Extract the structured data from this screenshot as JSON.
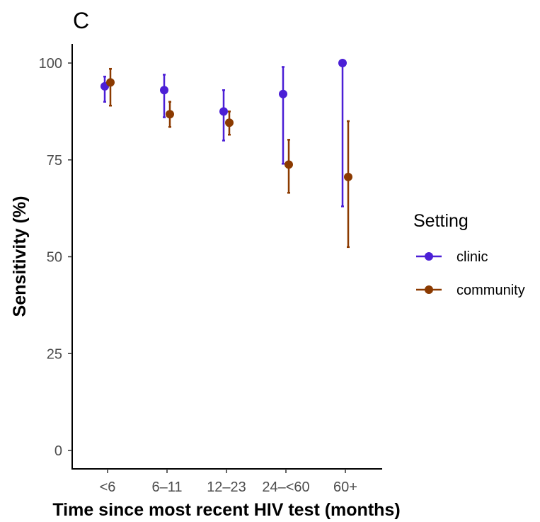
{
  "chart_data": {
    "type": "scatter",
    "panel_tag": "C",
    "xlabel": "Time since most recent HIV test (months)",
    "ylabel": "Sensitivity (%)",
    "ylim": [
      0,
      100
    ],
    "yticks": [
      "0",
      "25",
      "50",
      "75",
      "100"
    ],
    "categories": [
      "<6",
      "6–11",
      "12–23",
      "24–<60",
      "60+"
    ],
    "grid": false,
    "legend": {
      "title": "Setting",
      "position": "right"
    },
    "series": [
      {
        "name": "clinic",
        "color": "#4b1fd6",
        "values": [
          94.0,
          93.0,
          87.5,
          92.0,
          100.0
        ],
        "lower": [
          90.0,
          86.0,
          80.0,
          74.0,
          63.0
        ],
        "upper": [
          96.5,
          97.0,
          93.0,
          99.0,
          100.0
        ]
      },
      {
        "name": "community",
        "color": "#8b3a00",
        "values": [
          95.0,
          86.8,
          84.6,
          73.8,
          70.6
        ],
        "lower": [
          89.0,
          83.5,
          81.5,
          66.5,
          52.5
        ],
        "upper": [
          98.5,
          90.0,
          87.5,
          80.2,
          85.0
        ]
      }
    ]
  }
}
